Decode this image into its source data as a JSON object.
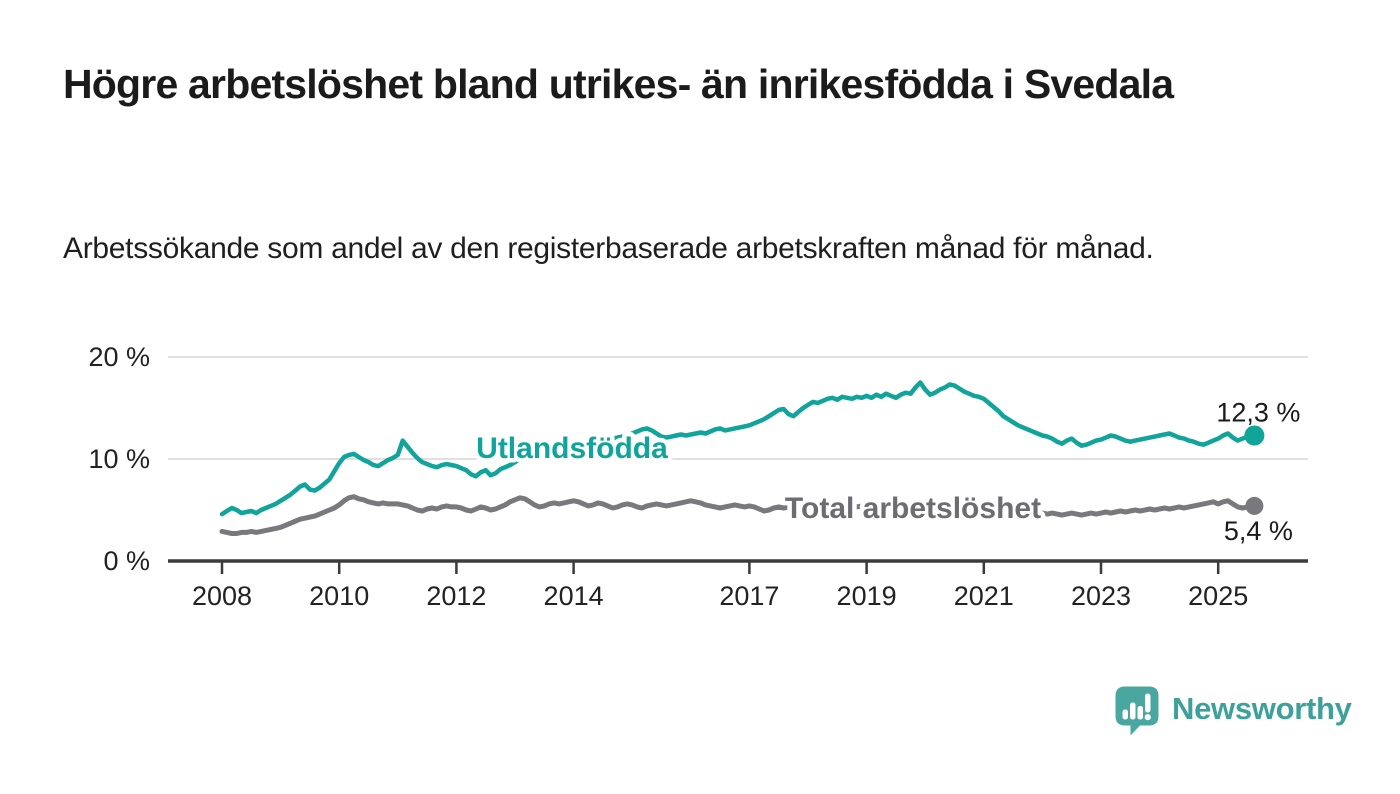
{
  "header": {
    "title": "Högre arbetslöshet bland utrikes- än inrikesfödda i Svedala",
    "subtitle": "Arbetssökande som andel av den registerbaserade arbetskraften månad för månad."
  },
  "chart_data": {
    "type": "line",
    "title": "Högre arbetslöshet bland utrikes- än inrikesfödda i Svedala",
    "xlabel": "",
    "ylabel": "",
    "x_start": "2008-01",
    "x_end": "2025-08",
    "x_frequency": "monthly",
    "x_tick_years": [
      2008,
      2010,
      2012,
      2014,
      2017,
      2019,
      2021,
      2023,
      2025
    ],
    "x_tick_labels": [
      "2008",
      "2010",
      "2012",
      "2014",
      "2017",
      "2019",
      "2021",
      "2023",
      "2025"
    ],
    "y_ticks": [
      {
        "value": 0,
        "label": "0 %"
      },
      {
        "value": 10,
        "label": "10 %"
      },
      {
        "value": 20,
        "label": "20 %"
      }
    ],
    "ylim": [
      0,
      20
    ],
    "grid": "horizontal",
    "legend_position": "inline-labels",
    "colors": {
      "grid": "#d6d6d6",
      "axis": "#3b3b3b",
      "tick_text": "#222222",
      "annotation_text": "#1b1b1b"
    },
    "series": [
      {
        "name": "Utlandsfödda",
        "color": "#10a49a",
        "label_color": "#10a49a",
        "end_label": "12,3 %",
        "end_value": 12.3,
        "values": [
          4.6,
          4.9,
          5.2,
          5.0,
          4.7,
          4.8,
          4.9,
          4.7,
          5.0,
          5.2,
          5.4,
          5.6,
          5.9,
          6.2,
          6.5,
          6.9,
          7.3,
          7.5,
          7.0,
          6.9,
          7.2,
          7.6,
          8.0,
          8.8,
          9.6,
          10.2,
          10.4,
          10.5,
          10.2,
          9.9,
          9.7,
          9.4,
          9.3,
          9.6,
          9.9,
          10.1,
          10.4,
          11.8,
          11.2,
          10.6,
          10.1,
          9.7,
          9.5,
          9.3,
          9.2,
          9.4,
          9.5,
          9.4,
          9.3,
          9.1,
          8.9,
          8.5,
          8.3,
          8.7,
          8.9,
          8.4,
          8.6,
          9.0,
          9.2,
          9.4,
          9.7,
          10.0,
          10.2,
          10.4,
          10.6,
          10.7,
          10.6,
          10.8,
          11.0,
          11.1,
          11.2,
          11.3,
          11.4,
          11.5,
          11.6,
          11.5,
          11.7,
          11.8,
          11.7,
          11.9,
          12.0,
          12.1,
          12.2,
          12.3,
          12.5,
          12.7,
          12.9,
          13.0,
          12.8,
          12.5,
          12.2,
          12.1,
          12.2,
          12.3,
          12.4,
          12.3,
          12.4,
          12.5,
          12.6,
          12.5,
          12.7,
          12.9,
          13.0,
          12.8,
          12.9,
          13.0,
          13.1,
          13.2,
          13.3,
          13.5,
          13.7,
          13.9,
          14.2,
          14.5,
          14.8,
          14.9,
          14.4,
          14.2,
          14.6,
          15.0,
          15.3,
          15.6,
          15.5,
          15.7,
          15.9,
          16.0,
          15.8,
          16.1,
          16.0,
          15.9,
          16.1,
          16.0,
          16.2,
          16.0,
          16.3,
          16.1,
          16.4,
          16.2,
          16.0,
          16.3,
          16.5,
          16.4,
          17.0,
          17.5,
          16.8,
          16.3,
          16.5,
          16.8,
          17.0,
          17.3,
          17.2,
          16.9,
          16.6,
          16.4,
          16.2,
          16.1,
          15.9,
          15.5,
          15.1,
          14.7,
          14.2,
          13.9,
          13.6,
          13.3,
          13.1,
          12.9,
          12.7,
          12.5,
          12.3,
          12.2,
          12.0,
          11.7,
          11.5,
          11.8,
          12.0,
          11.6,
          11.3,
          11.4,
          11.6,
          11.8,
          11.9,
          12.1,
          12.3,
          12.2,
          12.0,
          11.8,
          11.7,
          11.8,
          11.9,
          12.0,
          12.1,
          12.2,
          12.3,
          12.4,
          12.5,
          12.3,
          12.1,
          12.0,
          11.8,
          11.7,
          11.5,
          11.4,
          11.6,
          11.8,
          12.0,
          12.3,
          12.5,
          12.1,
          11.8,
          12.0,
          12.2,
          12.3
        ]
      },
      {
        "name": "Total arbetslöshet",
        "color": "#78787d",
        "label_color": "#6c6c71",
        "end_label": "5,4 %",
        "end_value": 5.4,
        "values": [
          2.9,
          2.8,
          2.7,
          2.7,
          2.8,
          2.8,
          2.9,
          2.8,
          2.9,
          3.0,
          3.1,
          3.2,
          3.3,
          3.5,
          3.7,
          3.9,
          4.1,
          4.2,
          4.3,
          4.4,
          4.6,
          4.8,
          5.0,
          5.2,
          5.5,
          5.9,
          6.2,
          6.3,
          6.1,
          6.0,
          5.8,
          5.7,
          5.6,
          5.7,
          5.6,
          5.6,
          5.6,
          5.5,
          5.4,
          5.2,
          5.0,
          4.9,
          5.1,
          5.2,
          5.1,
          5.3,
          5.4,
          5.3,
          5.3,
          5.2,
          5.0,
          4.9,
          5.1,
          5.3,
          5.2,
          5.0,
          5.1,
          5.3,
          5.5,
          5.8,
          6.0,
          6.2,
          6.1,
          5.8,
          5.5,
          5.3,
          5.4,
          5.6,
          5.7,
          5.6,
          5.7,
          5.8,
          5.9,
          5.8,
          5.6,
          5.4,
          5.5,
          5.7,
          5.6,
          5.4,
          5.2,
          5.3,
          5.5,
          5.6,
          5.5,
          5.3,
          5.2,
          5.4,
          5.5,
          5.6,
          5.5,
          5.4,
          5.5,
          5.6,
          5.7,
          5.8,
          5.9,
          5.8,
          5.7,
          5.5,
          5.4,
          5.3,
          5.2,
          5.3,
          5.4,
          5.5,
          5.4,
          5.3,
          5.4,
          5.3,
          5.1,
          4.9,
          5.0,
          5.2,
          5.3,
          5.2,
          5.3,
          5.4,
          5.5,
          5.4,
          5.5,
          5.6,
          5.7,
          5.6,
          5.5,
          5.4,
          5.5,
          5.6,
          5.5,
          5.4,
          5.3,
          5.4,
          5.5,
          5.4,
          5.3,
          5.4,
          5.5,
          5.4,
          5.3,
          5.2,
          5.3,
          5.4,
          5.3,
          5.2,
          5.3,
          5.2,
          5.4,
          5.6,
          5.5,
          5.4,
          5.3,
          5.2,
          5.1,
          5.2,
          5.1,
          5.0,
          5.1,
          5.0,
          4.9,
          5.0,
          4.9,
          4.8,
          4.9,
          5.0,
          4.9,
          4.8,
          4.7,
          4.8,
          4.7,
          4.6,
          4.7,
          4.6,
          4.5,
          4.6,
          4.7,
          4.6,
          4.5,
          4.6,
          4.7,
          4.6,
          4.7,
          4.8,
          4.7,
          4.8,
          4.9,
          4.8,
          4.9,
          5.0,
          4.9,
          5.0,
          5.1,
          5.0,
          5.1,
          5.2,
          5.1,
          5.2,
          5.3,
          5.2,
          5.3,
          5.4,
          5.5,
          5.6,
          5.7,
          5.8,
          5.6,
          5.8,
          5.9,
          5.6,
          5.3,
          5.2,
          5.3,
          5.4
        ]
      }
    ]
  },
  "logo": {
    "brand": "Newsworthy",
    "icon": "newsworthy-speech-bubble-bar-chart-icon",
    "icon_color": "#4aa7a0",
    "text_color": "#3ea09a"
  }
}
